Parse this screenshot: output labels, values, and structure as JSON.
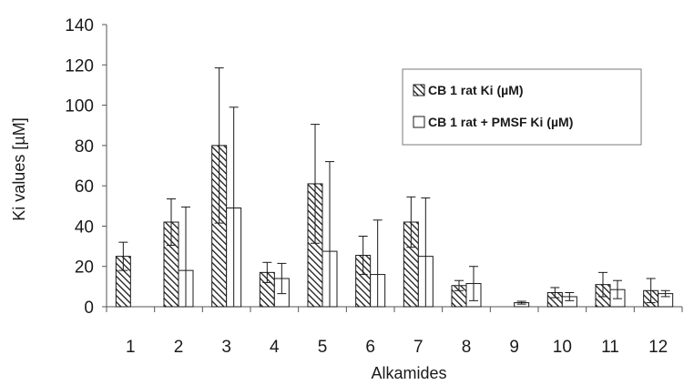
{
  "chart_data": {
    "type": "bar",
    "xlabel": "Alkamides",
    "ylabel": "Ki values [µM]",
    "ylim": [
      0,
      140
    ],
    "yticks": [
      0,
      20,
      40,
      60,
      80,
      100,
      120,
      140
    ],
    "grid": false,
    "legend_position": "top-right",
    "categories": [
      "1",
      "2",
      "3",
      "4",
      "5",
      "6",
      "7",
      "8",
      "9",
      "10",
      "11",
      "12"
    ],
    "series": [
      {
        "name": "CB 1 rat Ki (µM)",
        "pattern": "hatched",
        "values": [
          25,
          42,
          80,
          17,
          61,
          25.5,
          42,
          10.5,
          null,
          7,
          11,
          8
        ],
        "error": [
          7,
          11.5,
          38.5,
          5,
          29.5,
          9.5,
          12.5,
          2.5,
          null,
          2.5,
          6,
          6
        ]
      },
      {
        "name": "CB 1 rat + PMSF Ki (µM)",
        "pattern": "open",
        "values": [
          null,
          18,
          49,
          14,
          27.5,
          16,
          25,
          11.5,
          2,
          5,
          8.5,
          6.5
        ],
        "error": [
          null,
          31.5,
          50,
          7.5,
          44.5,
          27,
          29,
          8.5,
          0.7,
          2,
          4.5,
          1.5
        ]
      }
    ]
  },
  "colors": {
    "axis": "#555555",
    "bar_stroke": "#1a1a1a",
    "hatch": "#1a1a1a",
    "open_fill": "#ffffff"
  }
}
